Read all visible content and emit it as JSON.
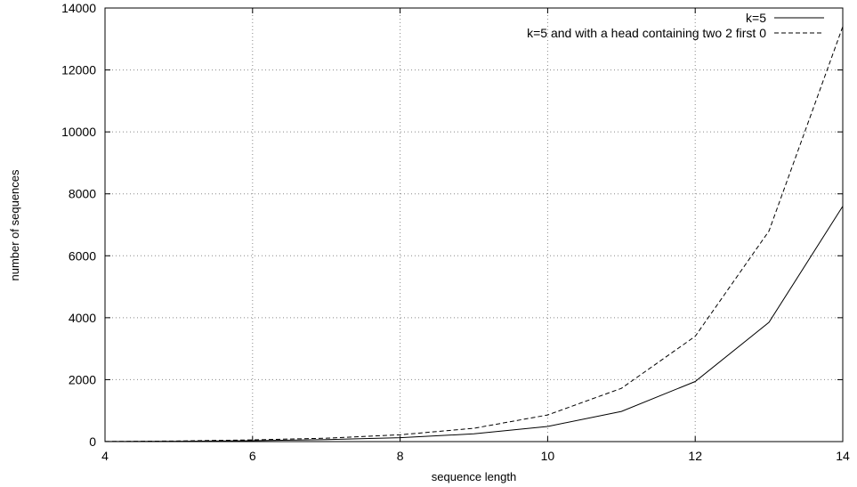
{
  "chart_data": {
    "type": "line",
    "xlabel": "sequence length",
    "ylabel": "number of sequences",
    "xlim": [
      4,
      14
    ],
    "ylim": [
      0,
      14000
    ],
    "xticks": [
      4,
      6,
      8,
      10,
      12,
      14
    ],
    "yticks": [
      0,
      2000,
      4000,
      6000,
      8000,
      10000,
      12000,
      14000
    ],
    "grid": true,
    "legend_position": "top-right",
    "series": [
      {
        "name": "k=5",
        "line_style": "solid",
        "color": "#000000",
        "x": [
          4,
          5,
          6,
          7,
          8,
          9,
          10,
          11,
          12,
          13,
          14
        ],
        "y": [
          2,
          10,
          30,
          63,
          125,
          250,
          490,
          975,
          1940,
          3850,
          7600
        ]
      },
      {
        "name": "k=5 and with a head containing two 2 first 0",
        "line_style": "dashed",
        "color": "#000000",
        "x": [
          4,
          5,
          6,
          7,
          8,
          9,
          10,
          11,
          12,
          13,
          14
        ],
        "y": [
          4,
          20,
          55,
          110,
          220,
          430,
          860,
          1720,
          3400,
          6800,
          13400
        ]
      }
    ]
  }
}
